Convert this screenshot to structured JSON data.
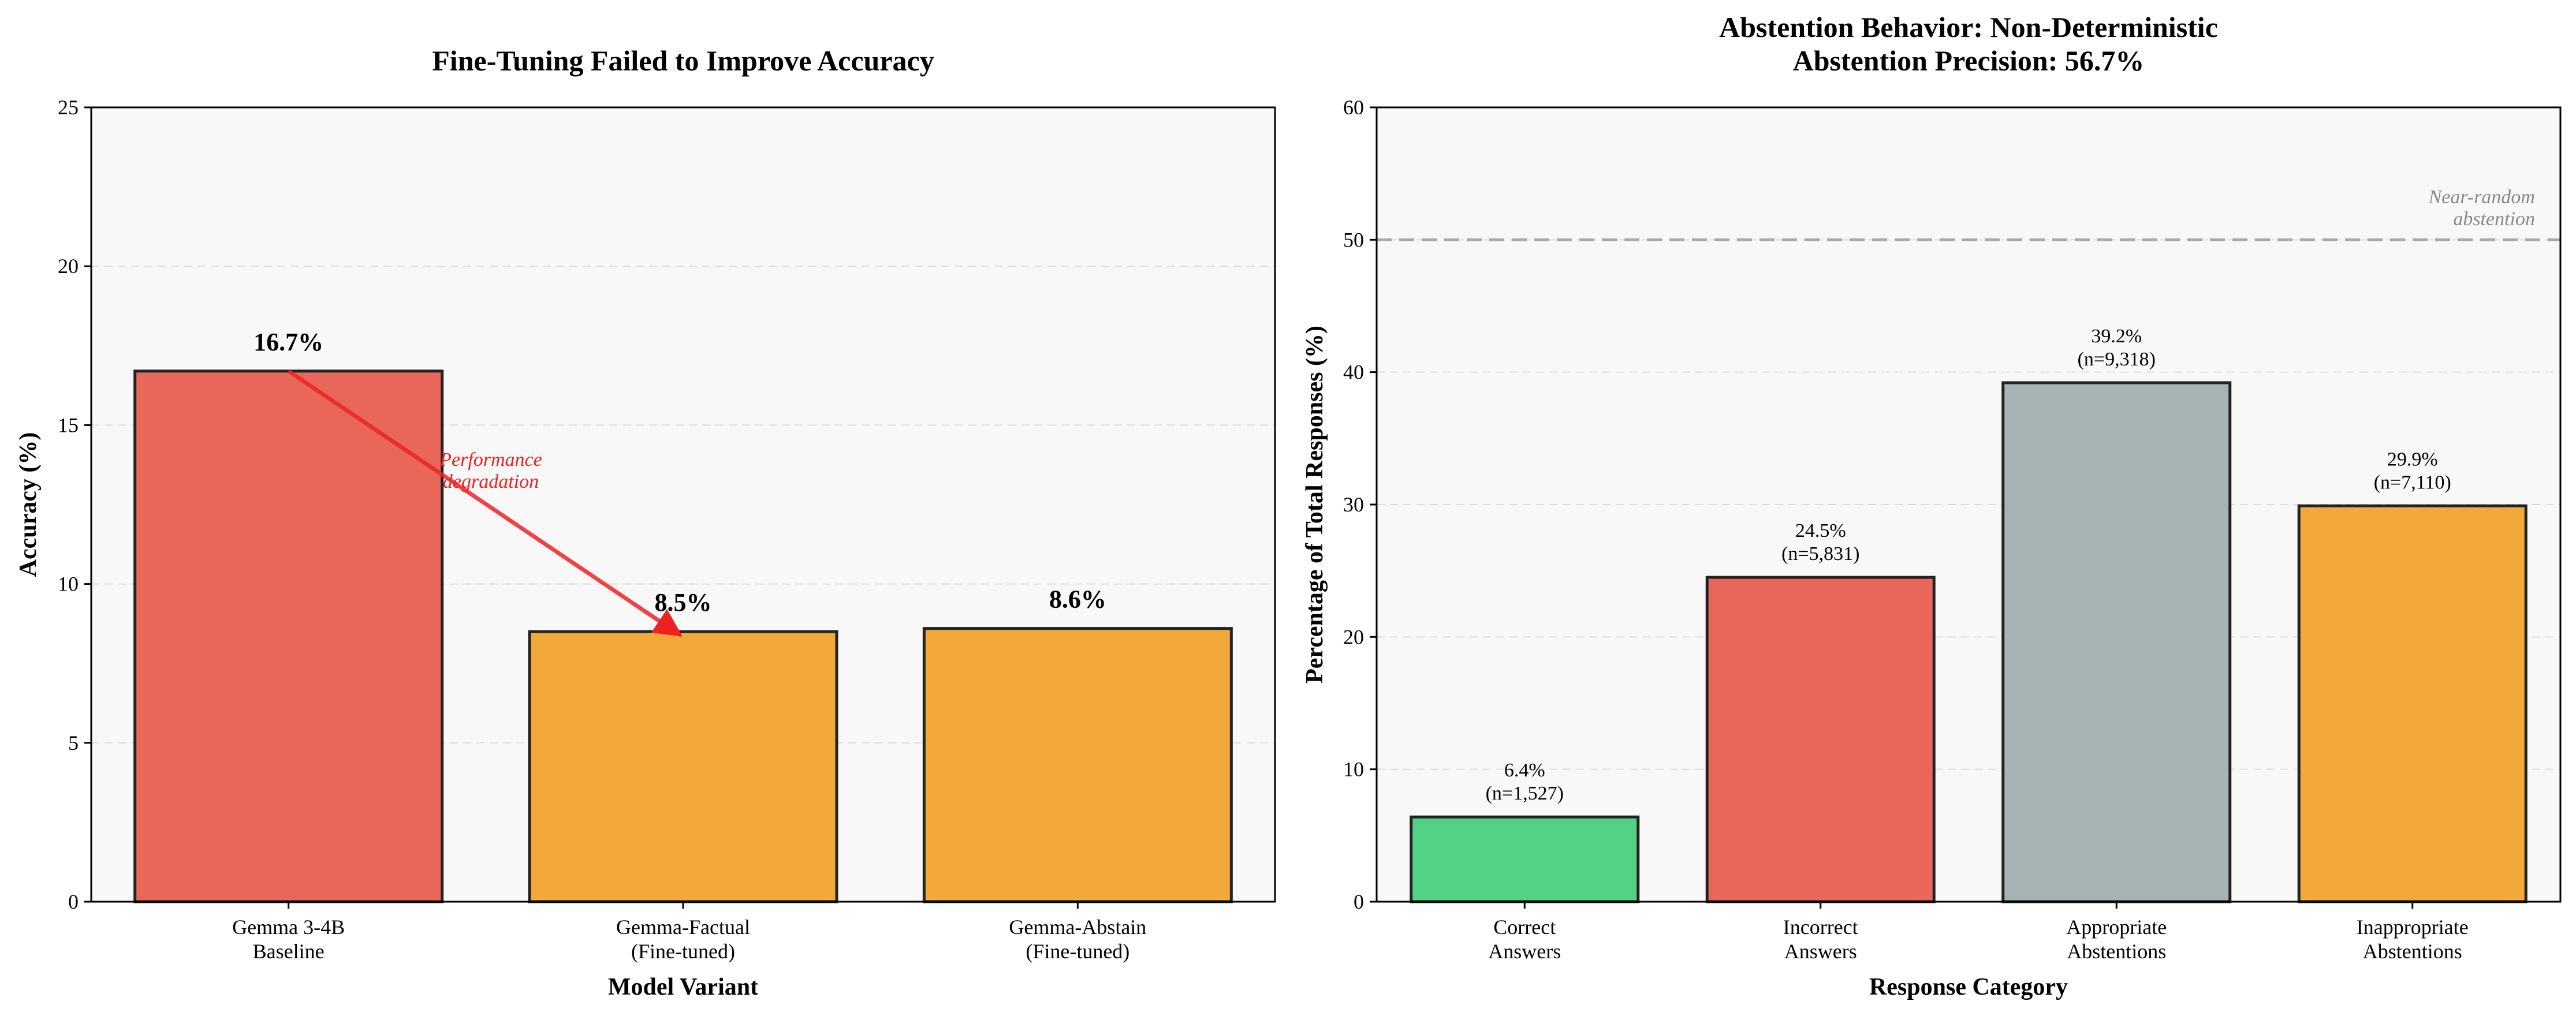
{
  "chart_data": [
    {
      "type": "bar",
      "title": "Fine-Tuning Failed to Improve Accuracy",
      "xlabel": "Model Variant",
      "ylabel": "Accuracy (%)",
      "ylim": [
        0,
        25
      ],
      "yticks": [
        "0",
        "5",
        "10",
        "15",
        "20",
        "25"
      ],
      "grid": "horizontal dashed",
      "categories": [
        [
          "Gemma 3-4B",
          "Baseline"
        ],
        [
          "Gemma-Factual",
          "(Fine-tuned)"
        ],
        [
          "Gemma-Abstain",
          "(Fine-tuned)"
        ]
      ],
      "values": [
        16.7,
        8.5,
        8.6
      ],
      "value_labels": [
        "16.7%",
        "8.5%",
        "8.6%"
      ],
      "colors": [
        "#e8665a",
        "#f3a93a",
        "#f3a93a"
      ],
      "annotation": {
        "lines": [
          "Performance",
          "degradation"
        ],
        "color": "#ee2222",
        "arrow_from": [
          0,
          16.7
        ],
        "arrow_to": [
          1,
          8.5
        ]
      }
    },
    {
      "type": "bar",
      "title": [
        "Abstention Behavior: Non-Deterministic",
        "Abstention Precision: 56.7%"
      ],
      "xlabel": "Response Category",
      "ylabel": "Percentage of Total Responses (%)",
      "ylim": [
        0,
        60
      ],
      "yticks": [
        "0",
        "10",
        "20",
        "30",
        "40",
        "50",
        "60"
      ],
      "grid": "horizontal dashed",
      "categories": [
        [
          "Correct",
          "Answers"
        ],
        [
          "Incorrect",
          "Answers"
        ],
        [
          "Appropriate",
          "Abstentions"
        ],
        [
          "Inappropriate",
          "Abstentions"
        ]
      ],
      "values": [
        6.4,
        24.5,
        39.2,
        29.9
      ],
      "value_labels": [
        [
          "6.4%",
          "(n=1,527)"
        ],
        [
          "24.5%",
          "(n=5,831)"
        ],
        [
          "39.2%",
          "(n=9,318)"
        ],
        [
          "29.9%",
          "(n=7,110)"
        ]
      ],
      "colors": [
        "#52d187",
        "#e8665a",
        "#a6b4b3",
        "#f3a93a"
      ],
      "reference_line": {
        "y": 50,
        "style": "dashed",
        "color": "#aaaaaa",
        "label": [
          "Near-random",
          "abstention"
        ]
      }
    }
  ]
}
